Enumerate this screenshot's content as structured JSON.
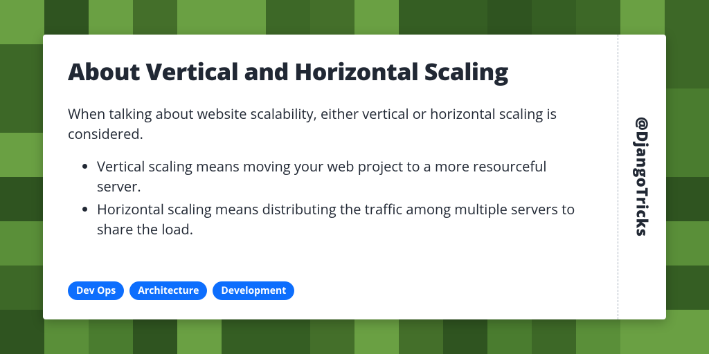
{
  "background": {
    "tile_size": 64,
    "cols": 16,
    "rows": 8,
    "palette": [
      "#4a7c2f",
      "#3d6827",
      "#2f5420",
      "#5a8f39",
      "#6aa043",
      "#355e23",
      "#446f2a"
    ]
  },
  "card": {
    "title": "About Vertical and Horizontal Scaling",
    "intro": "When talking about website scalability, either vertical or horizontal scaling is considered.",
    "bullets": [
      "Vertical scaling means moving your web project to a more resourceful server.",
      "Horizontal scaling means distributing the traffic among multiple servers to share the load."
    ],
    "tags": [
      "Dev Ops",
      "Architecture",
      "Development"
    ],
    "handle": "@DjangoTricks"
  },
  "colors": {
    "card_bg": "#ffffff",
    "title_color": "#212834",
    "text_color": "#212834",
    "tag_bg": "#0d6efd",
    "tag_text": "#ffffff",
    "divider": "#a7b0be"
  },
  "typography": {
    "title_fontsize": 34,
    "title_weight": 900,
    "body_fontsize": 20,
    "tag_fontsize": 14,
    "handle_fontsize": 22
  }
}
